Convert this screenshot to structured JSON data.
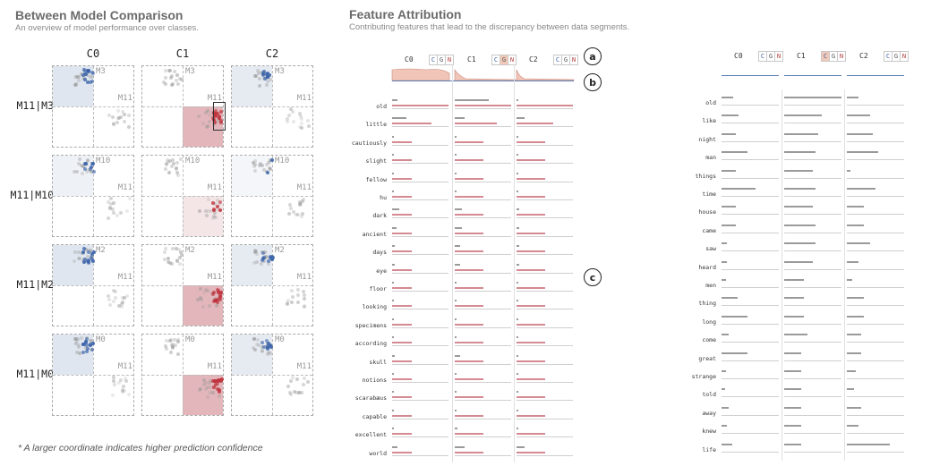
{
  "left": {
    "title": "Between Model Comparison",
    "subtitle": "An overview of model performance over classes.",
    "columns": [
      "C0",
      "C1",
      "C2"
    ],
    "rows": [
      {
        "label": "M11|M3",
        "other": "M3",
        "base": "M11",
        "cells": [
          {
            "tl": "blue-strong"
          },
          {
            "tl": "none",
            "br": "red-strong",
            "box": true
          },
          {
            "tl": "blue-mid"
          }
        ]
      },
      {
        "label": "M11|M10",
        "other": "M10",
        "base": "M11",
        "cells": [
          {
            "tl": "blue-light"
          },
          {
            "tl": "none",
            "br": "red-light"
          },
          {
            "tl": "blue-faint"
          }
        ]
      },
      {
        "label": "M11|M2",
        "other": "M2",
        "base": "M11",
        "cells": [
          {
            "tl": "blue-strong"
          },
          {
            "tl": "none",
            "br": "red-strong"
          },
          {
            "tl": "blue-mid"
          }
        ]
      },
      {
        "label": "M11|M0",
        "other": "M0",
        "base": "M11",
        "cells": [
          {
            "tl": "blue-strong"
          },
          {
            "tl": "none",
            "br": "red-strong"
          },
          {
            "tl": "blue-mid"
          }
        ]
      }
    ],
    "footnote": "* A larger coordinate indicates higher prediction confidence"
  },
  "right": {
    "title": "Feature Attribution",
    "subtitle": "Contributing features that lead to the discrepancy between data segments.",
    "markers": [
      "a",
      "b",
      "c"
    ],
    "cgn_letters": [
      "C",
      "G",
      "N"
    ],
    "panel1": {
      "columns": [
        {
          "label": "C0",
          "cgn_highlight": ""
        },
        {
          "label": "C1",
          "cgn_highlight": "G"
        },
        {
          "label": "C2",
          "cgn_highlight": ""
        }
      ],
      "features": [
        "old",
        "little",
        "cautiously",
        "slight",
        "fellow",
        "hu",
        "dark",
        "ancient",
        "days",
        "eye",
        "floor",
        "looking",
        "specimens",
        "according",
        "skull",
        "notions",
        "scarabæus",
        "capable",
        "excellent",
        "world"
      ]
    },
    "panel2": {
      "columns": [
        {
          "label": "C0",
          "cgn_highlight": ""
        },
        {
          "label": "C1",
          "cgn_highlight": "C"
        },
        {
          "label": "C2",
          "cgn_highlight": ""
        }
      ],
      "features": [
        "old",
        "like",
        "night",
        "man",
        "things",
        "time",
        "house",
        "came",
        "saw",
        "heard",
        "men",
        "thing",
        "long",
        "come",
        "great",
        "strange",
        "told",
        "away",
        "knew",
        "life"
      ]
    }
  },
  "chart_data": [
    {
      "type": "bar",
      "title": "Feature Attribution",
      "categories": [
        "old",
        "little",
        "cautiously",
        "slight",
        "fellow",
        "hu",
        "dark",
        "ancient",
        "days",
        "eye",
        "floor",
        "looking",
        "specimens",
        "according",
        "skull",
        "notions",
        "scarabæus",
        "capable",
        "excellent",
        "world"
      ],
      "series": [
        {
          "name": "C0",
          "gray": [
            0.1,
            0.25,
            0.02,
            0.02,
            0.02,
            0.02,
            0.12,
            0.08,
            0.04,
            0.04,
            0.02,
            0.02,
            0.02,
            0.02,
            0.04,
            0.02,
            0.02,
            0.02,
            0.02,
            0.1
          ],
          "red": [
            1.0,
            0.7,
            0.35,
            0.35,
            0.35,
            0.35,
            0.35,
            0.35,
            0.35,
            0.35,
            0.35,
            0.35,
            0.35,
            0.35,
            0.35,
            0.35,
            0.35,
            0.35,
            0.35,
            0.35
          ]
        },
        {
          "name": "C1",
          "gray": [
            0.6,
            0.18,
            0.02,
            0.02,
            0.02,
            0.02,
            0.12,
            0.12,
            0.1,
            0.1,
            0.02,
            0.02,
            0.02,
            0.02,
            0.1,
            0.02,
            0.02,
            0.02,
            0.04,
            0.18
          ],
          "red": [
            1.0,
            0.75,
            0.5,
            0.5,
            0.5,
            0.5,
            0.5,
            0.5,
            0.5,
            0.5,
            0.5,
            0.5,
            0.5,
            0.5,
            0.5,
            0.5,
            0.5,
            0.5,
            0.5,
            0.5
          ]
        },
        {
          "name": "C2",
          "gray": [
            0.02,
            0.15,
            0.02,
            0.02,
            0.02,
            0.02,
            0.05,
            0.05,
            0.04,
            0.04,
            0.02,
            0.02,
            0.02,
            0.02,
            0.02,
            0.02,
            0.02,
            0.02,
            0.02,
            0.15
          ],
          "red": [
            1.0,
            0.65,
            0.5,
            0.5,
            0.5,
            0.5,
            0.5,
            0.5,
            0.5,
            0.5,
            0.5,
            0.5,
            0.5,
            0.5,
            0.5,
            0.5,
            0.5,
            0.5,
            0.5,
            0.5
          ]
        }
      ]
    },
    {
      "type": "bar",
      "categories": [
        "old",
        "like",
        "night",
        "man",
        "things",
        "time",
        "house",
        "came",
        "saw",
        "heard",
        "men",
        "thing",
        "long",
        "come",
        "great",
        "strange",
        "told",
        "away",
        "knew",
        "life"
      ],
      "series": [
        {
          "name": "C0",
          "values": [
            0.2,
            0.3,
            0.25,
            0.45,
            0.25,
            0.6,
            0.25,
            0.25,
            0.1,
            0.1,
            0.08,
            0.28,
            0.45,
            0.12,
            0.45,
            0.08,
            0.06,
            0.12,
            0.1,
            0.18
          ]
        },
        {
          "name": "C1",
          "values": [
            1.0,
            0.65,
            0.6,
            0.55,
            0.5,
            0.55,
            0.5,
            0.55,
            0.55,
            0.5,
            0.35,
            0.35,
            0.35,
            0.4,
            0.3,
            0.3,
            0.3,
            0.3,
            0.3,
            0.3
          ]
        },
        {
          "name": "C2",
          "values": [
            0.2,
            0.4,
            0.45,
            0.55,
            0.06,
            0.5,
            0.3,
            0.3,
            0.4,
            0.2,
            0.1,
            0.3,
            0.3,
            0.25,
            0.25,
            0.15,
            0.12,
            0.25,
            0.2,
            0.75
          ]
        }
      ]
    }
  ]
}
